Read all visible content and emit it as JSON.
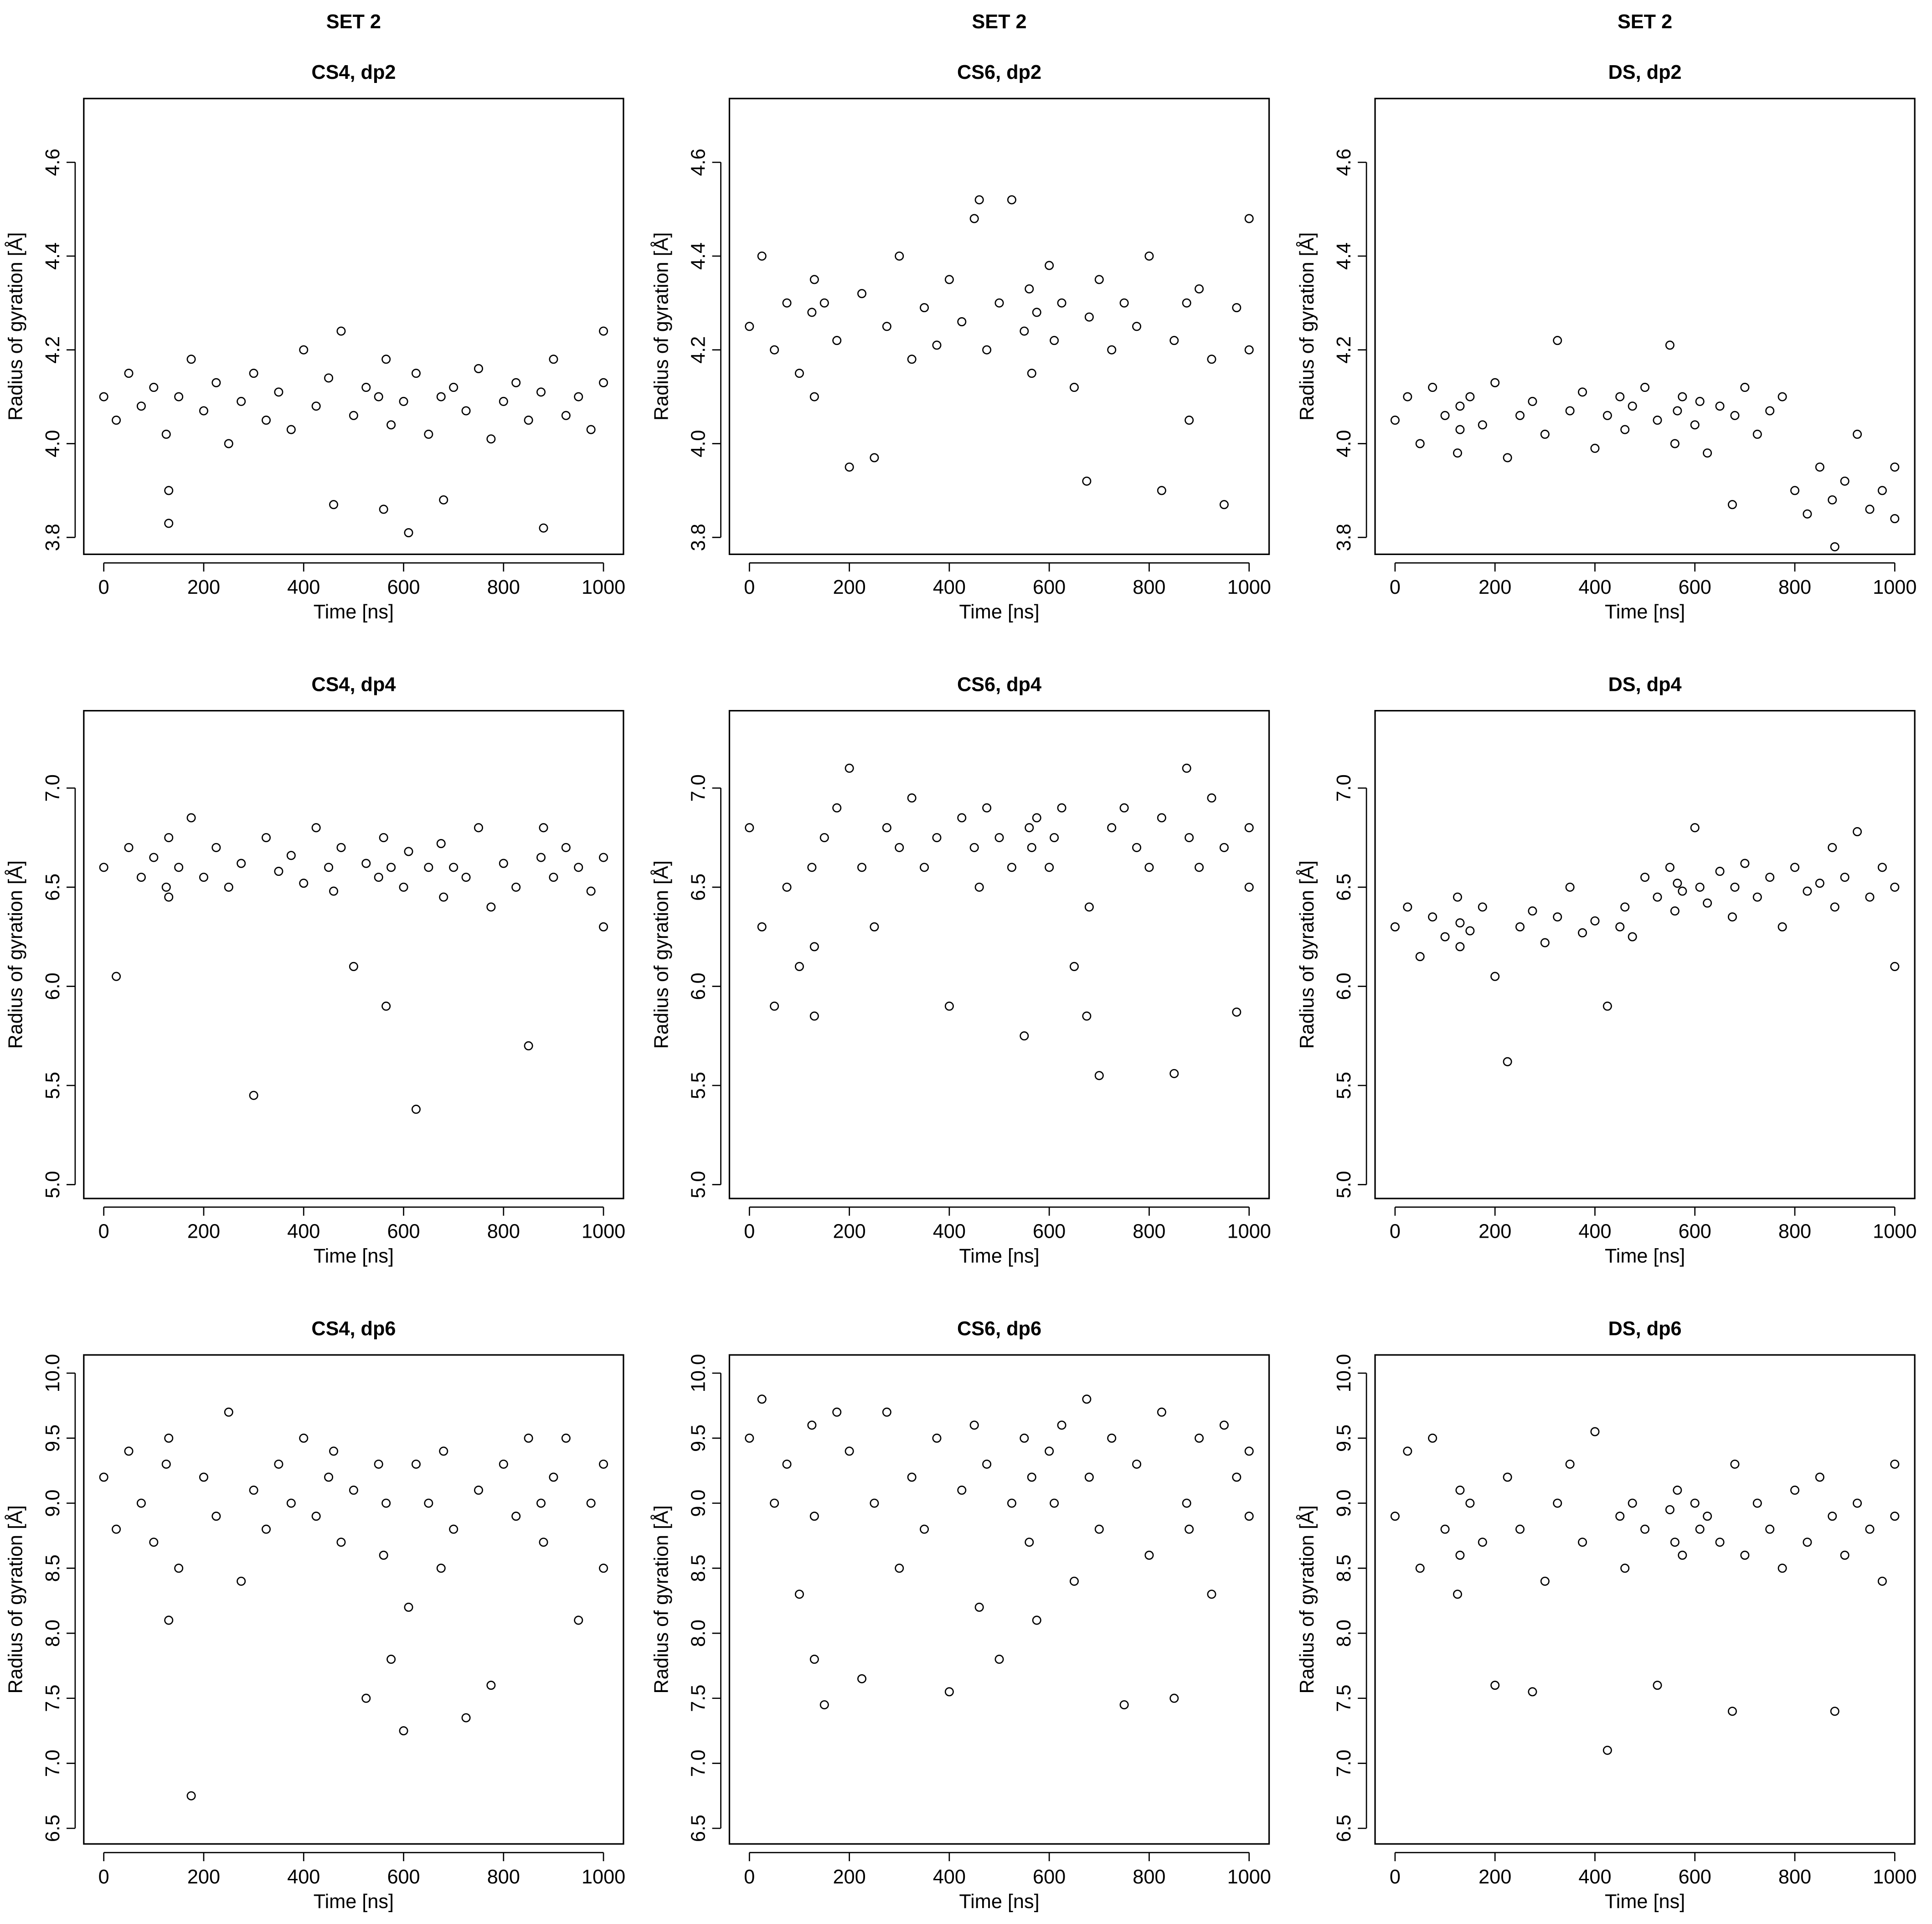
{
  "chart_data": [
    {
      "type": "scatter",
      "title": "SET 2",
      "subtitle": "CS4, dp2",
      "xlabel": "Time [ns]",
      "ylabel": "Radius of gyration [Å]",
      "color": "#000000",
      "xlim": [
        -40,
        1040
      ],
      "xticks": [
        0,
        200,
        400,
        600,
        800,
        1000
      ],
      "ylim": [
        3.764,
        4.736
      ],
      "yticks": [
        3.8,
        {
          "value": 4,
          "label": "4.0"
        },
        4.2,
        4.4,
        4.6
      ],
      "x": [
        0,
        25,
        50,
        75,
        100,
        125,
        130,
        130,
        150,
        175,
        200,
        225,
        250,
        275,
        300,
        325,
        350,
        375,
        400,
        425,
        450,
        460,
        475,
        500,
        525,
        550,
        560,
        565,
        575,
        600,
        610,
        625,
        650,
        675,
        680,
        700,
        725,
        750,
        775,
        800,
        825,
        850,
        875,
        880,
        900,
        925,
        950,
        975,
        1000,
        1000
      ],
      "values": [
        4.1,
        4.05,
        4.15,
        4.08,
        4.12,
        4.02,
        3.9,
        3.83,
        4.1,
        4.18,
        4.07,
        4.13,
        4.0,
        4.09,
        4.15,
        4.05,
        4.11,
        4.03,
        4.2,
        4.08,
        4.14,
        3.87,
        4.24,
        4.06,
        4.12,
        4.1,
        3.86,
        4.18,
        4.04,
        4.09,
        3.81,
        4.15,
        4.02,
        4.1,
        3.88,
        4.12,
        4.07,
        4.16,
        4.01,
        4.09,
        4.13,
        4.05,
        4.11,
        3.82,
        4.18,
        4.06,
        4.1,
        4.03,
        4.13,
        4.24
      ]
    },
    {
      "type": "scatter",
      "title": "SET 2",
      "subtitle": "CS6, dp2",
      "xlabel": "Time [ns]",
      "ylabel": "Radius of gyration [Å]",
      "color": "#000000",
      "xlim": [
        -40,
        1040
      ],
      "xticks": [
        0,
        200,
        400,
        600,
        800,
        1000
      ],
      "ylim": [
        3.764,
        4.736
      ],
      "yticks": [
        3.8,
        {
          "value": 4,
          "label": "4.0"
        },
        4.2,
        4.4,
        4.6
      ],
      "x": [
        0,
        25,
        50,
        75,
        100,
        125,
        130,
        130,
        150,
        175,
        200,
        225,
        250,
        275,
        300,
        325,
        350,
        375,
        400,
        425,
        450,
        460,
        475,
        500,
        525,
        550,
        560,
        565,
        575,
        600,
        610,
        625,
        650,
        675,
        680,
        700,
        725,
        750,
        775,
        800,
        825,
        850,
        875,
        880,
        900,
        925,
        950,
        975,
        1000,
        1000
      ],
      "values": [
        4.25,
        4.4,
        4.2,
        4.3,
        4.15,
        4.28,
        4.35,
        4.1,
        4.3,
        4.22,
        3.95,
        4.32,
        3.97,
        4.25,
        4.4,
        4.18,
        4.29,
        4.21,
        4.35,
        4.26,
        4.48,
        4.52,
        4.2,
        4.3,
        4.52,
        4.24,
        4.33,
        4.15,
        4.28,
        4.38,
        4.22,
        4.3,
        4.12,
        3.92,
        4.27,
        4.35,
        4.2,
        4.3,
        4.25,
        4.4,
        3.9,
        4.22,
        4.3,
        4.05,
        4.33,
        4.18,
        3.87,
        4.29,
        4.48,
        4.2
      ]
    },
    {
      "type": "scatter",
      "title": "SET 2",
      "subtitle": "DS, dp2",
      "xlabel": "Time [ns]",
      "ylabel": "Radius of gyration [Å]",
      "color": "#000000",
      "xlim": [
        -40,
        1040
      ],
      "xticks": [
        0,
        200,
        400,
        600,
        800,
        1000
      ],
      "ylim": [
        3.764,
        4.736
      ],
      "yticks": [
        3.8,
        {
          "value": 4,
          "label": "4.0"
        },
        4.2,
        4.4,
        4.6
      ],
      "x": [
        0,
        25,
        50,
        75,
        100,
        125,
        130,
        130,
        150,
        175,
        200,
        225,
        250,
        275,
        300,
        325,
        350,
        375,
        400,
        425,
        450,
        460,
        475,
        500,
        525,
        550,
        560,
        565,
        575,
        600,
        610,
        625,
        650,
        675,
        680,
        700,
        725,
        750,
        775,
        800,
        825,
        850,
        875,
        880,
        900,
        925,
        950,
        975,
        1000,
        1000
      ],
      "values": [
        4.05,
        4.1,
        4.0,
        4.12,
        4.06,
        3.98,
        4.08,
        4.03,
        4.1,
        4.04,
        4.13,
        3.97,
        4.06,
        4.09,
        4.02,
        4.22,
        4.07,
        4.11,
        3.99,
        4.06,
        4.1,
        4.03,
        4.08,
        4.12,
        4.05,
        4.21,
        4.0,
        4.07,
        4.1,
        4.04,
        4.09,
        3.98,
        4.08,
        3.87,
        4.06,
        4.12,
        4.02,
        4.07,
        4.1,
        3.9,
        3.85,
        3.95,
        3.88,
        3.78,
        3.92,
        4.02,
        3.86,
        3.9,
        3.84,
        3.95
      ]
    },
    {
      "type": "scatter",
      "subtitle": "CS4, dp4",
      "xlabel": "Time [ns]",
      "ylabel": "Radius of gyration [Å]",
      "color": "#000000",
      "xlim": [
        -40,
        1040
      ],
      "xticks": [
        0,
        200,
        400,
        600,
        800,
        1000
      ],
      "ylim": [
        4.93,
        7.39
      ],
      "yticks": [
        {
          "value": 5,
          "label": "5.0"
        },
        5.5,
        {
          "value": 6,
          "label": "6.0"
        },
        6.5,
        {
          "value": 7,
          "label": "7.0"
        }
      ],
      "x": [
        0,
        25,
        50,
        75,
        100,
        125,
        130,
        130,
        150,
        175,
        200,
        225,
        250,
        275,
        300,
        325,
        350,
        375,
        400,
        425,
        450,
        460,
        475,
        500,
        525,
        550,
        560,
        565,
        575,
        600,
        610,
        625,
        650,
        675,
        680,
        700,
        725,
        750,
        775,
        800,
        825,
        850,
        875,
        880,
        900,
        925,
        950,
        975,
        1000,
        1000
      ],
      "values": [
        6.6,
        6.05,
        6.7,
        6.55,
        6.65,
        6.5,
        6.75,
        6.45,
        6.6,
        6.85,
        6.55,
        6.7,
        6.5,
        6.62,
        5.45,
        6.75,
        6.58,
        6.66,
        6.52,
        6.8,
        6.6,
        6.48,
        6.7,
        6.1,
        6.62,
        6.55,
        6.75,
        5.9,
        6.6,
        6.5,
        6.68,
        5.38,
        6.6,
        6.72,
        6.45,
        6.6,
        6.55,
        6.8,
        6.4,
        6.62,
        6.5,
        5.7,
        6.65,
        6.8,
        6.55,
        6.7,
        6.6,
        6.48,
        6.65,
        6.3
      ]
    },
    {
      "type": "scatter",
      "subtitle": "CS6, dp4",
      "xlabel": "Time [ns]",
      "ylabel": "Radius of gyration [Å]",
      "color": "#000000",
      "xlim": [
        -40,
        1040
      ],
      "xticks": [
        0,
        200,
        400,
        600,
        800,
        1000
      ],
      "ylim": [
        4.93,
        7.39
      ],
      "yticks": [
        {
          "value": 5,
          "label": "5.0"
        },
        5.5,
        {
          "value": 6,
          "label": "6.0"
        },
        6.5,
        {
          "value": 7,
          "label": "7.0"
        }
      ],
      "x": [
        0,
        25,
        50,
        75,
        100,
        125,
        130,
        130,
        150,
        175,
        200,
        225,
        250,
        275,
        300,
        325,
        350,
        375,
        400,
        425,
        450,
        460,
        475,
        500,
        525,
        550,
        560,
        565,
        575,
        600,
        610,
        625,
        650,
        675,
        680,
        700,
        725,
        750,
        775,
        800,
        825,
        850,
        875,
        880,
        900,
        925,
        950,
        975,
        1000,
        1000
      ],
      "values": [
        6.8,
        6.3,
        5.9,
        6.5,
        6.1,
        6.6,
        6.2,
        5.85,
        6.75,
        6.9,
        7.1,
        6.6,
        6.3,
        6.8,
        6.7,
        6.95,
        6.6,
        6.75,
        5.9,
        6.85,
        6.7,
        6.5,
        6.9,
        6.75,
        6.6,
        5.75,
        6.8,
        6.7,
        6.85,
        6.6,
        6.75,
        6.9,
        6.1,
        5.85,
        6.4,
        5.55,
        6.8,
        6.9,
        6.7,
        6.6,
        6.85,
        5.56,
        7.1,
        6.75,
        6.6,
        6.95,
        6.7,
        5.87,
        6.8,
        6.5
      ]
    },
    {
      "type": "scatter",
      "subtitle": "DS, dp4",
      "xlabel": "Time [ns]",
      "ylabel": "Radius of gyration [Å]",
      "color": "#000000",
      "xlim": [
        -40,
        1040
      ],
      "xticks": [
        0,
        200,
        400,
        600,
        800,
        1000
      ],
      "ylim": [
        4.93,
        7.39
      ],
      "yticks": [
        {
          "value": 5,
          "label": "5.0"
        },
        5.5,
        {
          "value": 6,
          "label": "6.0"
        },
        6.5,
        {
          "value": 7,
          "label": "7.0"
        }
      ],
      "x": [
        0,
        25,
        50,
        75,
        100,
        125,
        130,
        130,
        150,
        175,
        200,
        225,
        250,
        275,
        300,
        325,
        350,
        375,
        400,
        425,
        450,
        460,
        475,
        500,
        525,
        550,
        560,
        565,
        575,
        600,
        610,
        625,
        650,
        675,
        680,
        700,
        725,
        750,
        775,
        800,
        825,
        850,
        875,
        880,
        900,
        925,
        950,
        975,
        1000,
        1000
      ],
      "values": [
        6.3,
        6.4,
        6.15,
        6.35,
        6.25,
        6.45,
        6.2,
        6.32,
        6.28,
        6.4,
        6.05,
        5.62,
        6.3,
        6.38,
        6.22,
        6.35,
        6.5,
        6.27,
        6.33,
        5.9,
        6.3,
        6.4,
        6.25,
        6.55,
        6.45,
        6.6,
        6.38,
        6.52,
        6.48,
        6.8,
        6.5,
        6.42,
        6.58,
        6.35,
        6.5,
        6.62,
        6.45,
        6.55,
        6.3,
        6.6,
        6.48,
        6.52,
        6.7,
        6.4,
        6.55,
        6.78,
        6.45,
        6.6,
        6.1,
        6.5
      ]
    },
    {
      "type": "scatter",
      "subtitle": "CS4, dp6",
      "xlabel": "Time [ns]",
      "ylabel": "Radius of gyration [Å]",
      "color": "#000000",
      "xlim": [
        -40,
        1040
      ],
      "xticks": [
        0,
        200,
        400,
        600,
        800,
        1000
      ],
      "ylim": [
        6.38,
        10.14
      ],
      "yticks": [
        6.5,
        {
          "value": 7,
          "label": "7.0"
        },
        7.5,
        {
          "value": 8,
          "label": "8.0"
        },
        8.5,
        {
          "value": 9,
          "label": "9.0"
        },
        9.5,
        {
          "value": 10,
          "label": "10.0"
        }
      ],
      "x": [
        0,
        25,
        50,
        75,
        100,
        125,
        130,
        130,
        150,
        175,
        200,
        225,
        250,
        275,
        300,
        325,
        350,
        375,
        400,
        425,
        450,
        460,
        475,
        500,
        525,
        550,
        560,
        565,
        575,
        600,
        610,
        625,
        650,
        675,
        680,
        700,
        725,
        750,
        775,
        800,
        825,
        850,
        875,
        880,
        900,
        925,
        950,
        975,
        1000,
        1000
      ],
      "values": [
        9.2,
        8.8,
        9.4,
        9.0,
        8.7,
        9.3,
        8.1,
        9.5,
        8.5,
        6.75,
        9.2,
        8.9,
        9.7,
        8.4,
        9.1,
        8.8,
        9.3,
        9.0,
        9.5,
        8.9,
        9.2,
        9.4,
        8.7,
        9.1,
        7.5,
        9.3,
        8.6,
        9.0,
        7.8,
        7.25,
        8.2,
        9.3,
        9.0,
        8.5,
        9.4,
        8.8,
        7.35,
        9.1,
        7.6,
        9.3,
        8.9,
        9.5,
        9.0,
        8.7,
        9.2,
        9.5,
        8.1,
        9.0,
        9.3,
        8.5
      ]
    },
    {
      "type": "scatter",
      "subtitle": "CS6, dp6",
      "xlabel": "Time [ns]",
      "ylabel": "Radius of gyration [Å]",
      "color": "#000000",
      "xlim": [
        -40,
        1040
      ],
      "xticks": [
        0,
        200,
        400,
        600,
        800,
        1000
      ],
      "ylim": [
        6.38,
        10.14
      ],
      "yticks": [
        6.5,
        {
          "value": 7,
          "label": "7.0"
        },
        7.5,
        {
          "value": 8,
          "label": "8.0"
        },
        8.5,
        {
          "value": 9,
          "label": "9.0"
        },
        9.5,
        {
          "value": 10,
          "label": "10.0"
        }
      ],
      "x": [
        0,
        25,
        50,
        75,
        100,
        125,
        130,
        130,
        150,
        175,
        200,
        225,
        250,
        275,
        300,
        325,
        350,
        375,
        400,
        425,
        450,
        460,
        475,
        500,
        525,
        550,
        560,
        565,
        575,
        600,
        610,
        625,
        650,
        675,
        680,
        700,
        725,
        750,
        775,
        800,
        825,
        850,
        875,
        880,
        900,
        925,
        950,
        975,
        1000,
        1000
      ],
      "values": [
        9.5,
        9.8,
        9.0,
        9.3,
        8.3,
        9.6,
        7.8,
        8.9,
        7.45,
        9.7,
        9.4,
        7.65,
        9.0,
        9.7,
        8.5,
        9.2,
        8.8,
        9.5,
        7.55,
        9.1,
        9.6,
        8.2,
        9.3,
        7.8,
        9.0,
        9.5,
        8.7,
        9.2,
        8.1,
        9.4,
        9.0,
        9.6,
        8.4,
        9.8,
        9.2,
        8.8,
        9.5,
        7.45,
        9.3,
        8.6,
        9.7,
        7.5,
        9.0,
        8.8,
        9.5,
        8.3,
        9.6,
        9.2,
        9.4,
        8.9
      ]
    },
    {
      "type": "scatter",
      "subtitle": "DS, dp6",
      "xlabel": "Time [ns]",
      "ylabel": "Radius of gyration [Å]",
      "color": "#000000",
      "xlim": [
        -40,
        1040
      ],
      "xticks": [
        0,
        200,
        400,
        600,
        800,
        1000
      ],
      "ylim": [
        6.38,
        10.14
      ],
      "yticks": [
        6.5,
        {
          "value": 7,
          "label": "7.0"
        },
        7.5,
        {
          "value": 8,
          "label": "8.0"
        },
        8.5,
        {
          "value": 9,
          "label": "9.0"
        },
        9.5,
        {
          "value": 10,
          "label": "10.0"
        }
      ],
      "x": [
        0,
        25,
        50,
        75,
        100,
        125,
        130,
        130,
        150,
        175,
        200,
        225,
        250,
        275,
        300,
        325,
        350,
        375,
        400,
        425,
        450,
        460,
        475,
        500,
        525,
        550,
        560,
        565,
        575,
        600,
        610,
        625,
        650,
        675,
        680,
        700,
        725,
        750,
        775,
        800,
        825,
        850,
        875,
        880,
        900,
        925,
        950,
        975,
        1000,
        1000
      ],
      "values": [
        8.9,
        9.4,
        8.5,
        9.5,
        8.8,
        8.3,
        9.1,
        8.6,
        9.0,
        8.7,
        7.6,
        9.2,
        8.8,
        7.55,
        8.4,
        9.0,
        9.3,
        8.7,
        9.55,
        7.1,
        8.9,
        8.5,
        9.0,
        8.8,
        7.6,
        8.95,
        8.7,
        9.1,
        8.6,
        9.0,
        8.8,
        8.9,
        8.7,
        7.4,
        9.3,
        8.6,
        9.0,
        8.8,
        8.5,
        9.1,
        8.7,
        9.2,
        8.9,
        7.4,
        8.6,
        9.0,
        8.8,
        8.4,
        8.9,
        9.3
      ]
    }
  ]
}
